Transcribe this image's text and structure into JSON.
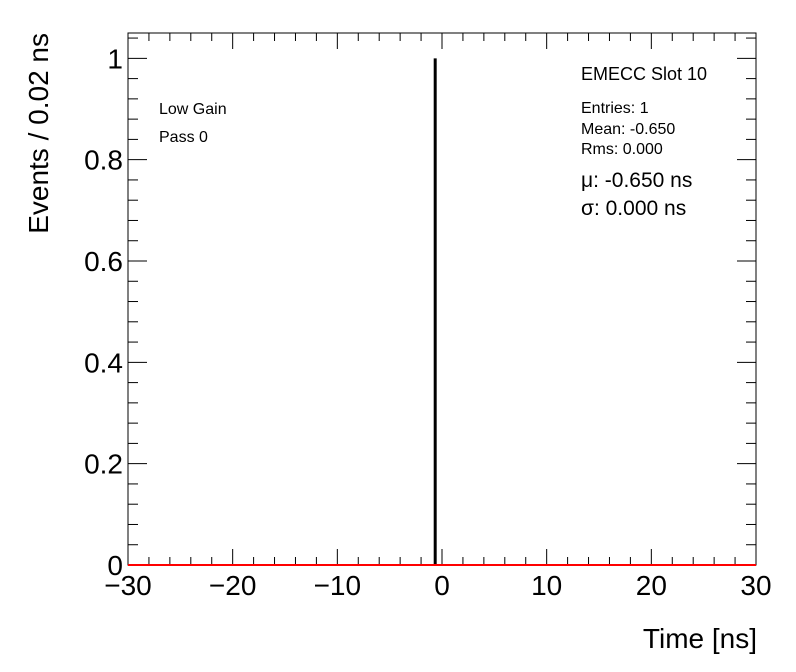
{
  "chart_data": {
    "type": "histogram",
    "title": "",
    "xlabel": "Time [ns]",
    "ylabel": "Events / 0.02 ns",
    "xlim": [
      -30,
      30
    ],
    "ylim": [
      0,
      1.05
    ],
    "x_ticks": [
      -30,
      -20,
      -10,
      0,
      10,
      20,
      30
    ],
    "x_tick_labels": [
      "−30",
      "−20",
      "−10",
      "0",
      "10",
      "20",
      "30"
    ],
    "y_ticks": [
      0,
      0.2,
      0.4,
      0.6,
      0.8,
      1
    ],
    "y_tick_labels": [
      "0",
      "0.2",
      "0.4",
      "0.6",
      "0.8",
      "1"
    ],
    "bin_width": 0.02,
    "series": [
      {
        "type": "histogram",
        "bins": [
          {
            "x": -0.65,
            "y": 1
          }
        ],
        "color": "#000000"
      },
      {
        "type": "fit",
        "y": 0,
        "color": "#ff0000"
      }
    ],
    "annotations": {
      "left": [
        "Low Gain",
        "Pass 0"
      ],
      "title_box": "EMECC Slot 10",
      "stats": [
        "Entries: 1",
        "Mean: -0.650",
        "Rms: 0.000"
      ],
      "fit": [
        "μ: -0.650 ns",
        "σ: 0.000 ns"
      ]
    },
    "grid": false
  }
}
